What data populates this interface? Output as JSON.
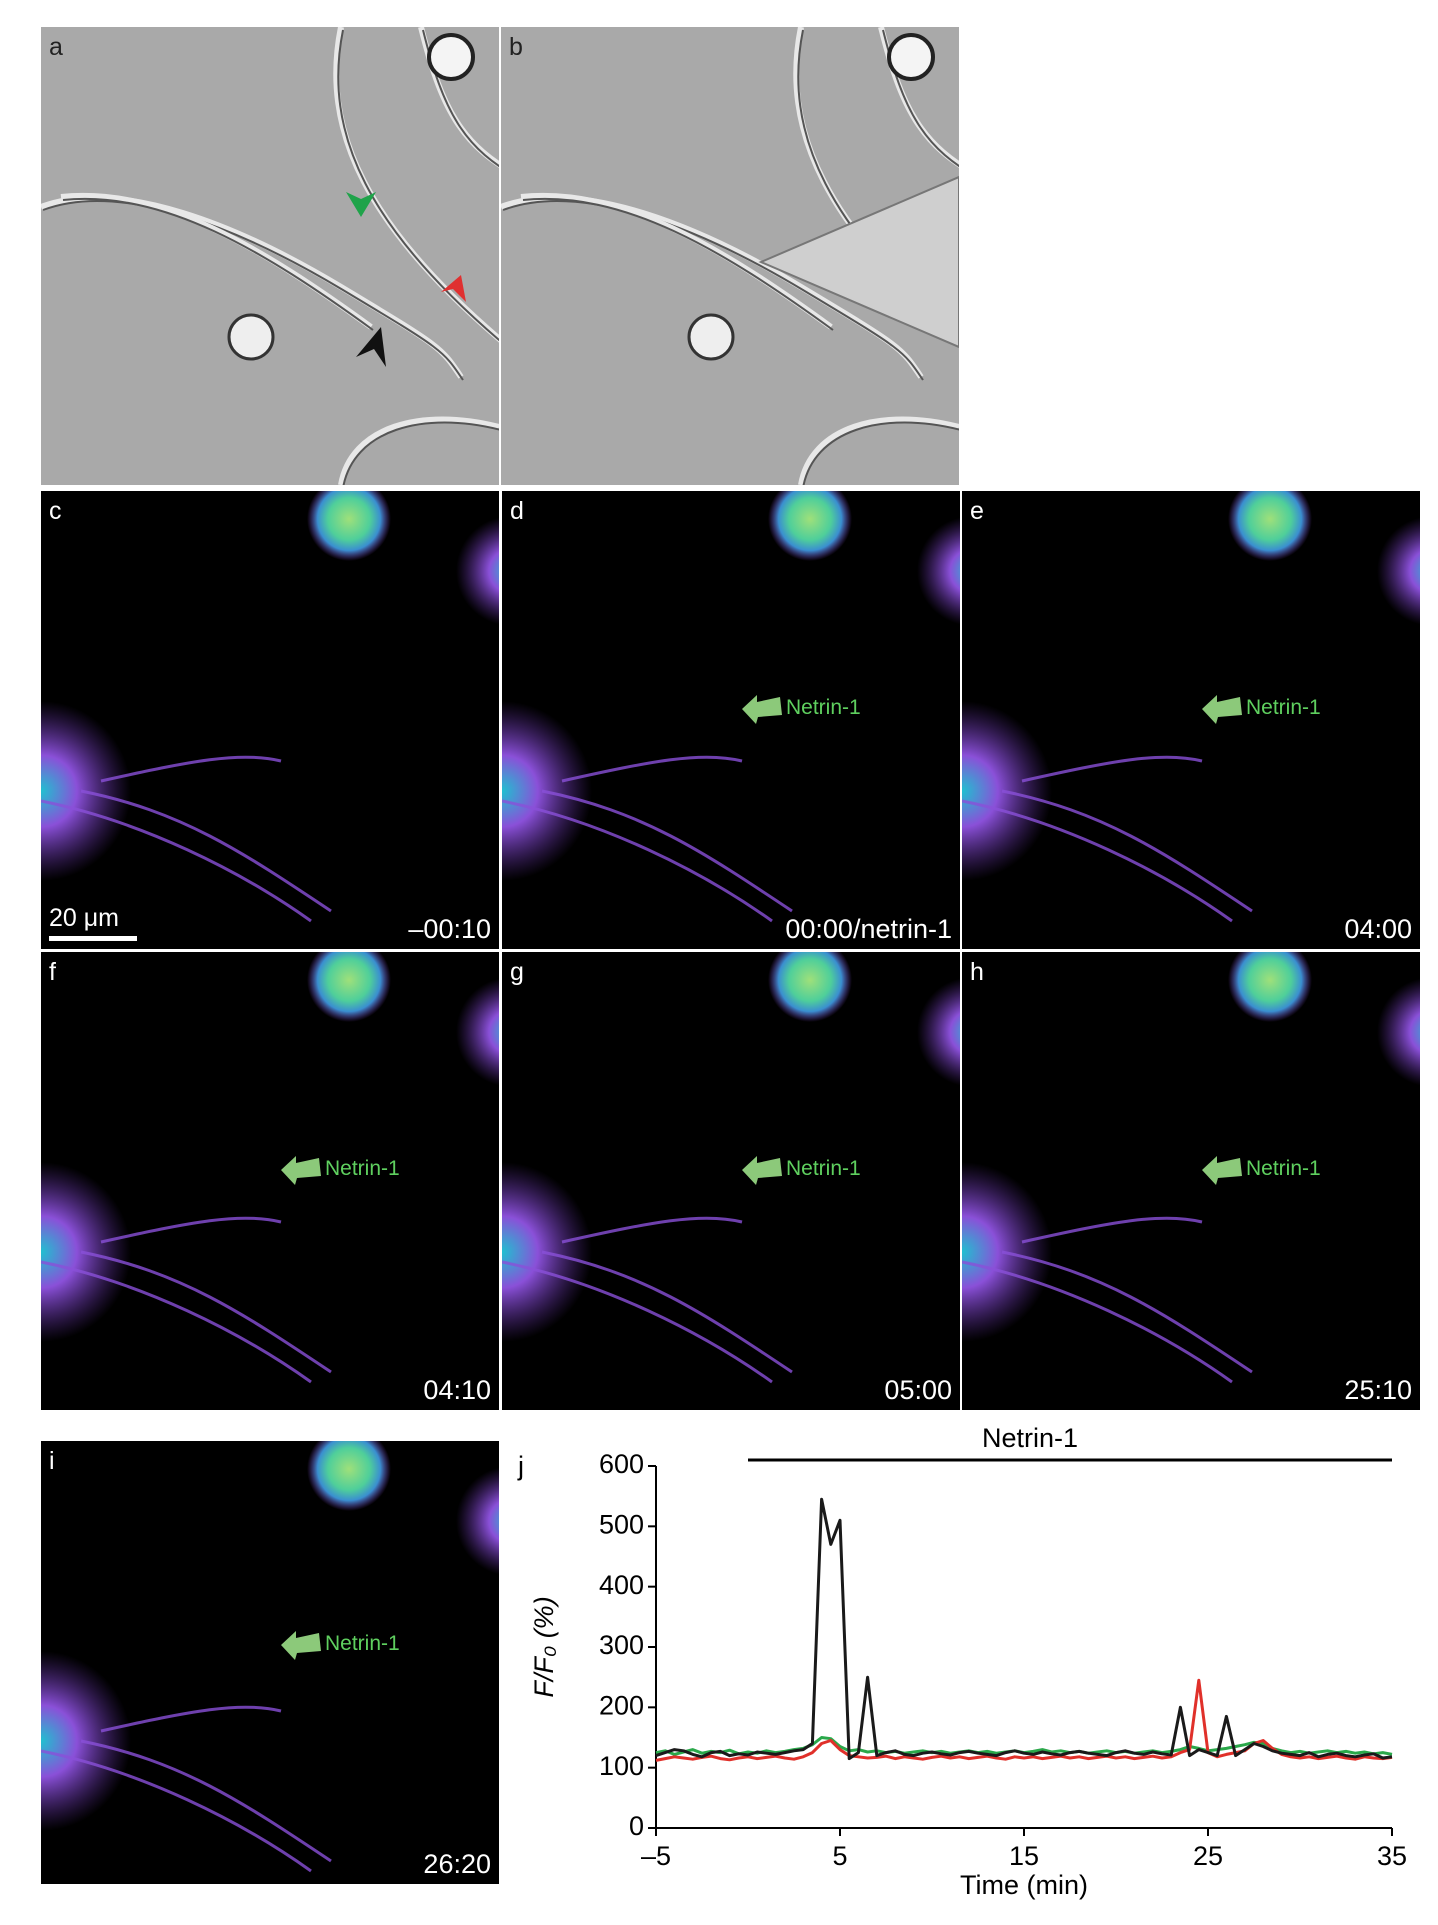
{
  "panels": [
    {
      "label": "a"
    },
    {
      "label": "b"
    },
    {
      "label": "c",
      "time": "–00:10",
      "scale_bar": "20 μm"
    },
    {
      "label": "d",
      "time": "00:00/netrin-1",
      "annotation": "Netrin-1"
    },
    {
      "label": "e",
      "time": "04:00",
      "annotation": "Netrin-1"
    },
    {
      "label": "f",
      "time": "04:10",
      "annotation": "Netrin-1"
    },
    {
      "label": "g",
      "time": "05:00",
      "annotation": "Netrin-1"
    },
    {
      "label": "h",
      "time": "25:10",
      "annotation": "Netrin-1"
    },
    {
      "label": "i",
      "time": "26:20",
      "annotation": "Netrin-1"
    }
  ],
  "chart_data": {
    "type": "line",
    "panel_label": "j",
    "x_label": "Time (min)",
    "y_label": "F/F₀ (%)",
    "annotation": {
      "text": "Netrin-1",
      "x_range": [
        0,
        35
      ]
    },
    "xlim": [
      -5,
      35
    ],
    "ylim": [
      0,
      600
    ],
    "xticks": [
      {
        "value": -5,
        "label": "–5"
      },
      5,
      15,
      25,
      35
    ],
    "yticks": [
      0,
      100,
      200,
      300,
      400,
      500,
      600
    ],
    "x": [
      -5,
      -4.5,
      -4,
      -3.5,
      -3,
      -2.5,
      -2,
      -1.5,
      -1,
      -0.5,
      0,
      0.5,
      1,
      1.5,
      2,
      2.5,
      3,
      3.5,
      4,
      4.5,
      5,
      5.5,
      6,
      6.5,
      7,
      7.5,
      8,
      8.5,
      9,
      9.5,
      10,
      10.5,
      11,
      11.5,
      12,
      12.5,
      13,
      13.5,
      14,
      14.5,
      15,
      15.5,
      16,
      16.5,
      17,
      17.5,
      18,
      18.5,
      19,
      19.5,
      20,
      20.5,
      21,
      21.5,
      22,
      22.5,
      23,
      23.5,
      24,
      24.5,
      25,
      25.5,
      26,
      26.5,
      27,
      27.5,
      28,
      28.5,
      29,
      29.5,
      30,
      30.5,
      31,
      31.5,
      32,
      32.5,
      33,
      33.5,
      34,
      34.5,
      35
    ],
    "series": [
      {
        "color": "#1a1a1a",
        "values": [
          120,
          125,
          130,
          128,
          122,
          118,
          125,
          127,
          120,
          123,
          121,
          126,
          124,
          122,
          125,
          128,
          130,
          140,
          545,
          470,
          510,
          115,
          125,
          250,
          120,
          125,
          128,
          122,
          120,
          124,
          126,
          123,
          121,
          125,
          127,
          124,
          122,
          120,
          125,
          128,
          124,
          122,
          126,
          123,
          121,
          125,
          127,
          124,
          122,
          120,
          125,
          128,
          124,
          122,
          126,
          123,
          121,
          200,
          120,
          130,
          125,
          120,
          185,
          120,
          130,
          140,
          135,
          128,
          124,
          122,
          120,
          125,
          118,
          122,
          124,
          120,
          118,
          121,
          123,
          116,
          118
        ]
      },
      {
        "color": "#e0302a",
        "values": [
          112,
          115,
          118,
          116,
          114,
          117,
          119,
          115,
          113,
          116,
          118,
          115,
          117,
          119,
          116,
          114,
          118,
          125,
          140,
          145,
          130,
          120,
          118,
          116,
          117,
          119,
          115,
          118,
          116,
          114,
          117,
          119,
          116,
          118,
          115,
          117,
          119,
          116,
          114,
          118,
          116,
          118,
          115,
          117,
          119,
          116,
          118,
          115,
          117,
          119,
          116,
          118,
          115,
          117,
          119,
          116,
          118,
          125,
          130,
          245,
          125,
          118,
          122,
          125,
          128,
          140,
          145,
          132,
          122,
          118,
          116,
          118,
          115,
          117,
          119,
          116,
          114,
          118,
          116,
          115,
          117
        ]
      },
      {
        "color": "#2aa84a",
        "values": [
          125,
          128,
          122,
          126,
          130,
          124,
          127,
          125,
          129,
          123,
          126,
          124,
          128,
          125,
          127,
          130,
          132,
          138,
          150,
          148,
          135,
          128,
          130,
          126,
          128,
          125,
          127,
          124,
          126,
          128,
          125,
          127,
          124,
          126,
          128,
          125,
          127,
          124,
          126,
          128,
          125,
          127,
          130,
          126,
          128,
          125,
          127,
          124,
          126,
          128,
          125,
          127,
          124,
          126,
          128,
          125,
          127,
          130,
          135,
          132,
          128,
          130,
          132,
          135,
          138,
          142,
          140,
          132,
          128,
          125,
          127,
          124,
          126,
          128,
          125,
          127,
          124,
          126,
          123,
          125,
          122
        ]
      }
    ]
  }
}
